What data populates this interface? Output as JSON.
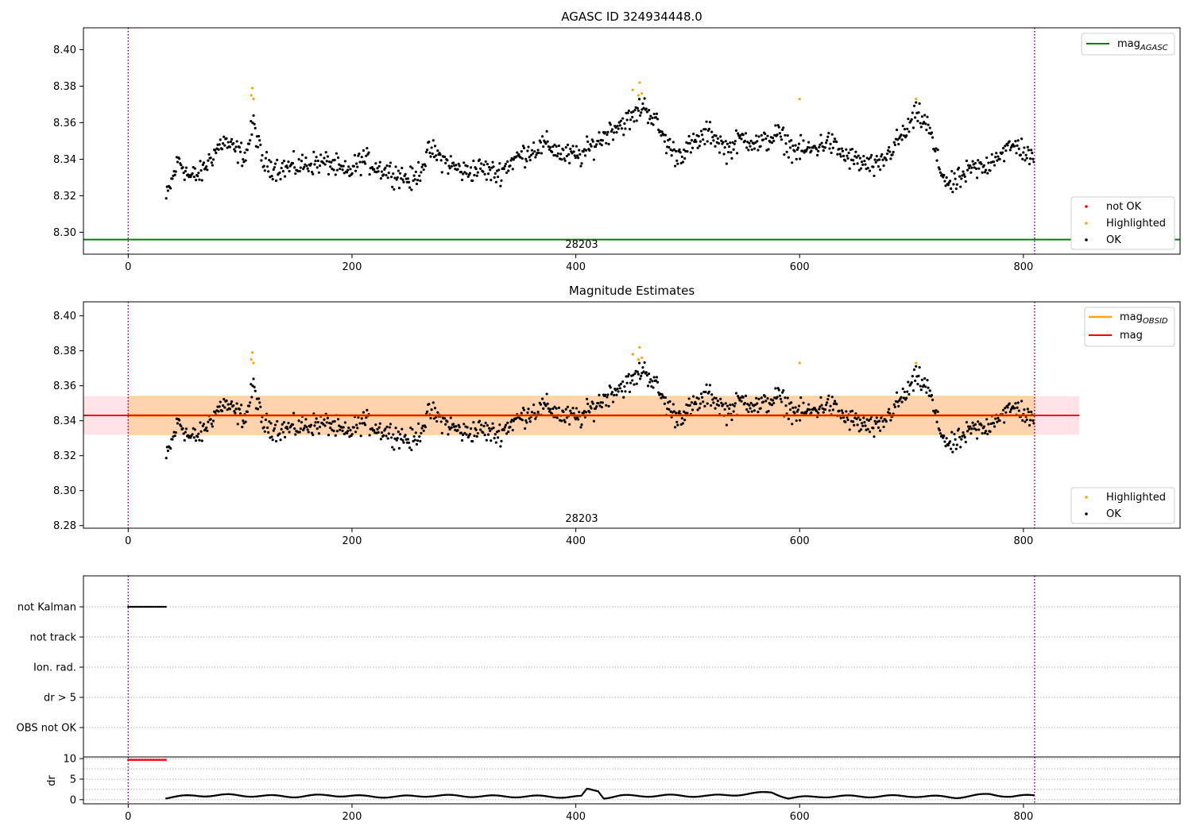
{
  "chart_data": [
    {
      "type": "scatter",
      "title": "AGASC ID 324934448.0",
      "xlim": [
        -40,
        940
      ],
      "ylim": [
        8.288,
        8.412
      ],
      "xticks": [
        0,
        200,
        400,
        600,
        800
      ],
      "yticks": [
        8.3,
        8.32,
        8.34,
        8.36,
        8.38,
        8.4
      ],
      "ytick_labels": [
        "8.30",
        "8.32",
        "8.34",
        "8.36",
        "8.38",
        "8.40"
      ],
      "grid": false,
      "vlines": [
        0,
        810
      ],
      "hlines": [
        {
          "name": "mag_AGASC",
          "y": 8.296,
          "color": "#008000"
        }
      ],
      "obsid_label": {
        "text": "28203",
        "x": 405
      },
      "series": [
        {
          "name": "not OK",
          "color": "#ff0000",
          "values": []
        },
        {
          "name": "Highlighted",
          "color": "#ffa500",
          "points": [
            [
              110,
              8.375
            ],
            [
              111,
              8.379
            ],
            [
              112,
              8.373
            ],
            [
              451,
              8.378
            ],
            [
              456,
              8.375
            ],
            [
              457,
              8.382
            ],
            [
              459,
              8.376
            ],
            [
              600,
              8.373
            ],
            [
              704,
              8.373
            ]
          ]
        },
        {
          "name": "OK",
          "color": "#000000",
          "note": "approx. 1000 points sampled along the curve below"
        }
      ],
      "ok_curve": {
        "x": [
          34,
          45,
          55,
          65,
          75,
          85,
          95,
          105,
          112,
          120,
          135,
          150,
          165,
          180,
          195,
          210,
          225,
          240,
          255,
          270,
          285,
          300,
          315,
          330,
          345,
          360,
          375,
          390,
          405,
          420,
          435,
          450,
          460,
          470,
          480,
          490,
          505,
          520,
          535,
          550,
          565,
          580,
          595,
          610,
          625,
          640,
          655,
          670,
          685,
          695,
          705,
          715,
          725,
          735,
          745,
          755,
          765,
          775,
          785,
          795,
          810
        ],
        "y": [
          8.318,
          8.34,
          8.33,
          8.332,
          8.342,
          8.35,
          8.345,
          8.342,
          8.36,
          8.338,
          8.335,
          8.336,
          8.338,
          8.338,
          8.332,
          8.34,
          8.335,
          8.332,
          8.328,
          8.345,
          8.338,
          8.333,
          8.335,
          8.332,
          8.34,
          8.345,
          8.348,
          8.342,
          8.342,
          8.35,
          8.358,
          8.362,
          8.37,
          8.362,
          8.35,
          8.342,
          8.348,
          8.355,
          8.345,
          8.352,
          8.348,
          8.354,
          8.345,
          8.345,
          8.35,
          8.342,
          8.338,
          8.335,
          8.348,
          8.355,
          8.365,
          8.358,
          8.335,
          8.325,
          8.33,
          8.335,
          8.335,
          8.342,
          8.345,
          8.348,
          8.338
        ]
      },
      "legends": [
        {
          "position": "upper right",
          "entries": [
            {
              "label_main": "mag",
              "label_sub": "AGASC",
              "color": "#008000",
              "marker": "line"
            }
          ]
        },
        {
          "position": "lower right",
          "entries": [
            {
              "label_main": "not OK",
              "color": "#ff0000",
              "marker": "dot"
            },
            {
              "label_main": "Highlighted",
              "color": "#ffa500",
              "marker": "dot"
            },
            {
              "label_main": "OK",
              "color": "#000000",
              "marker": "dot"
            }
          ]
        }
      ]
    },
    {
      "type": "scatter",
      "title": "Magnitude Estimates",
      "xlim": [
        -40,
        940
      ],
      "ylim": [
        8.2785,
        8.408
      ],
      "xticks": [
        0,
        200,
        400,
        600,
        800
      ],
      "yticks": [
        8.28,
        8.3,
        8.32,
        8.34,
        8.36,
        8.38,
        8.4
      ],
      "ytick_labels": [
        "8.28",
        "8.30",
        "8.32",
        "8.34",
        "8.36",
        "8.38",
        "8.40"
      ],
      "grid": false,
      "vlines": [
        0,
        810
      ],
      "bands": [
        {
          "name": "mag band",
          "x0": -40,
          "x1": 850,
          "y0": 8.332,
          "y1": 8.354,
          "color": "#ffc0cb"
        },
        {
          "name": "mag_OBSID band",
          "x0": 0,
          "x1": 810,
          "y0": 8.332,
          "y1": 8.354,
          "color": "#ffa500"
        }
      ],
      "hlines": [
        {
          "name": "mag_OBSID",
          "y": 8.343,
          "x0": 0,
          "x1": 810,
          "color": "#ffa500"
        },
        {
          "name": "mag",
          "y": 8.343,
          "x0": -40,
          "x1": 850,
          "color": "#ff0000"
        }
      ],
      "obsid_label": {
        "text": "28203",
        "x": 405
      },
      "series": [
        {
          "name": "Highlighted",
          "color": "#ffa500",
          "points": [
            [
              110,
              8.375
            ],
            [
              111,
              8.379
            ],
            [
              112,
              8.373
            ],
            [
              451,
              8.378
            ],
            [
              456,
              8.375
            ],
            [
              457,
              8.382
            ],
            [
              459,
              8.376
            ],
            [
              600,
              8.373
            ],
            [
              704,
              8.373
            ]
          ]
        },
        {
          "name": "OK",
          "color": "#000000",
          "note": "same OK points as panel 1"
        }
      ],
      "legends": [
        {
          "position": "upper right",
          "entries": [
            {
              "label_main": "mag",
              "label_sub": "OBSID",
              "color": "#ffa500",
              "marker": "line"
            },
            {
              "label_main": "mag",
              "label_sub": "",
              "color": "#ff0000",
              "marker": "line"
            }
          ]
        },
        {
          "position": "lower right",
          "entries": [
            {
              "label_main": "Highlighted",
              "color": "#ffa500",
              "marker": "dot"
            },
            {
              "label_main": "OK",
              "color": "#000000",
              "marker": "dot"
            }
          ]
        }
      ]
    },
    {
      "type": "scatter",
      "title": "",
      "xlim": [
        -40,
        940
      ],
      "categories": [
        "not Kalman",
        "not track",
        "Ion. rad.",
        "dr > 5",
        "OBS not OK"
      ],
      "grid": true,
      "vlines": [
        0,
        810
      ],
      "flag_points": [
        {
          "category": "not Kalman",
          "x_from": 0,
          "x_to": 34,
          "color": "#000000"
        }
      ]
    },
    {
      "type": "scatter",
      "title": "",
      "xlim": [
        -40,
        940
      ],
      "ylim": [
        -1,
        10.4
      ],
      "ylabel": "dr",
      "yticks": [
        0,
        5,
        10
      ],
      "ytick_labels": [
        "0",
        "5",
        "10"
      ],
      "xticks": [
        0,
        200,
        400,
        600,
        800
      ],
      "grid": true,
      "vlines": [
        0,
        810
      ],
      "clipped_points": {
        "x_from": 0,
        "x_to": 34,
        "y": 9.7,
        "color": "#ff0000"
      },
      "dr_curve": {
        "x": [
          34,
          60,
          90,
          120,
          150,
          180,
          210,
          240,
          270,
          300,
          330,
          360,
          390,
          405,
          410,
          420,
          425,
          440,
          480,
          520,
          560,
          575,
          590,
          620,
          660,
          700,
          740,
          770,
          790,
          810
        ],
        "y": [
          0.5,
          1.0,
          1.1,
          0.9,
          0.8,
          1.1,
          0.8,
          0.7,
          1.0,
          0.9,
          0.8,
          0.8,
          0.7,
          0.7,
          2.5,
          2.2,
          0.5,
          0.9,
          1.0,
          0.9,
          1.5,
          1.8,
          0.4,
          0.8,
          0.8,
          0.9,
          0.6,
          1.3,
          0.8,
          1.0
        ]
      }
    }
  ]
}
